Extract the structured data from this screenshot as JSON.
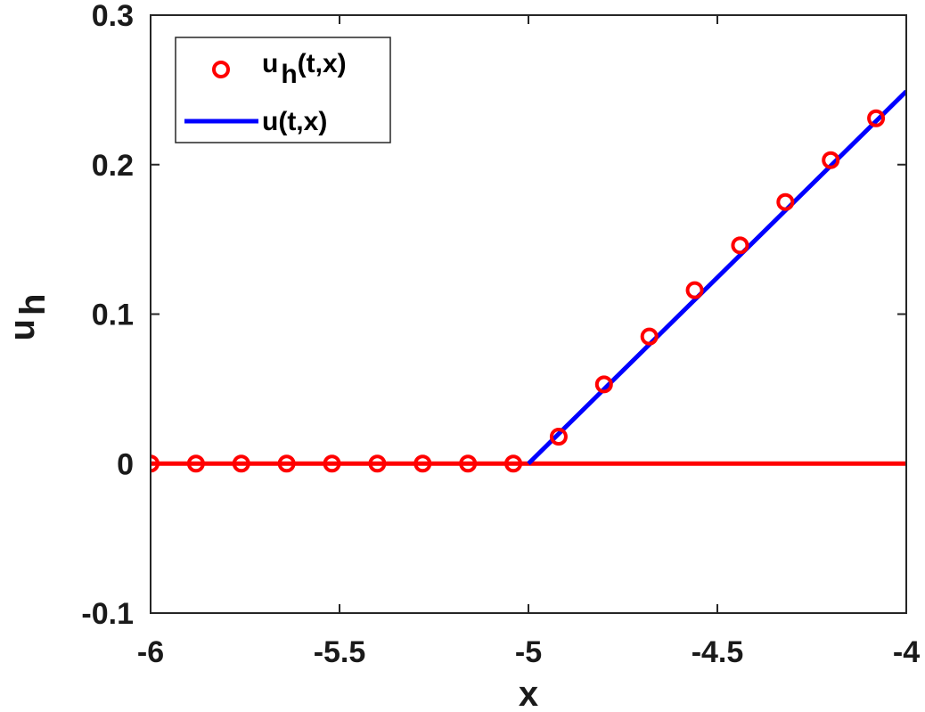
{
  "chart_data": {
    "type": "line",
    "xlabel": "x",
    "ylabel": "u",
    "ylabel_subscript": "h",
    "xlim": [
      -6,
      -4
    ],
    "ylim": [
      -0.1,
      0.3
    ],
    "xticks": [
      -6,
      -5.5,
      -5,
      -4.5,
      -4
    ],
    "xtick_labels": [
      "-6",
      "-5.5",
      "-5",
      "-4.5",
      "-4"
    ],
    "yticks": [
      -0.1,
      0,
      0.1,
      0.2,
      0.3
    ],
    "ytick_labels": [
      "-0.1",
      "0",
      "0.1",
      "0.2",
      "0.3"
    ],
    "legend_position": "top-left",
    "series": [
      {
        "name": "u_h(t,x)",
        "legend_main": "u",
        "legend_sub": "h",
        "legend_rest": "(t,x)",
        "style": "markers-circle",
        "color": "#ff0000",
        "x": [
          -6,
          -5.88,
          -5.76,
          -5.64,
          -5.52,
          -5.4,
          -5.28,
          -5.16,
          -5.04,
          -4.92,
          -4.8,
          -4.68,
          -4.56,
          -4.44,
          -4.32,
          -4.2,
          -4.08
        ],
        "y": [
          0,
          0,
          0,
          0,
          0,
          0,
          0,
          0,
          0,
          0.018,
          0.053,
          0.085,
          0.116,
          0.146,
          0.175,
          0.203,
          0.231
        ]
      },
      {
        "name": "u(t,x)",
        "style": "line",
        "color": "#0000ff",
        "x": [
          -5,
          -4
        ],
        "y": [
          0,
          0.249
        ]
      },
      {
        "name": "",
        "style": "line",
        "color": "#ff0000",
        "x": [
          -6,
          -4
        ],
        "y": [
          0,
          0
        ]
      }
    ]
  }
}
